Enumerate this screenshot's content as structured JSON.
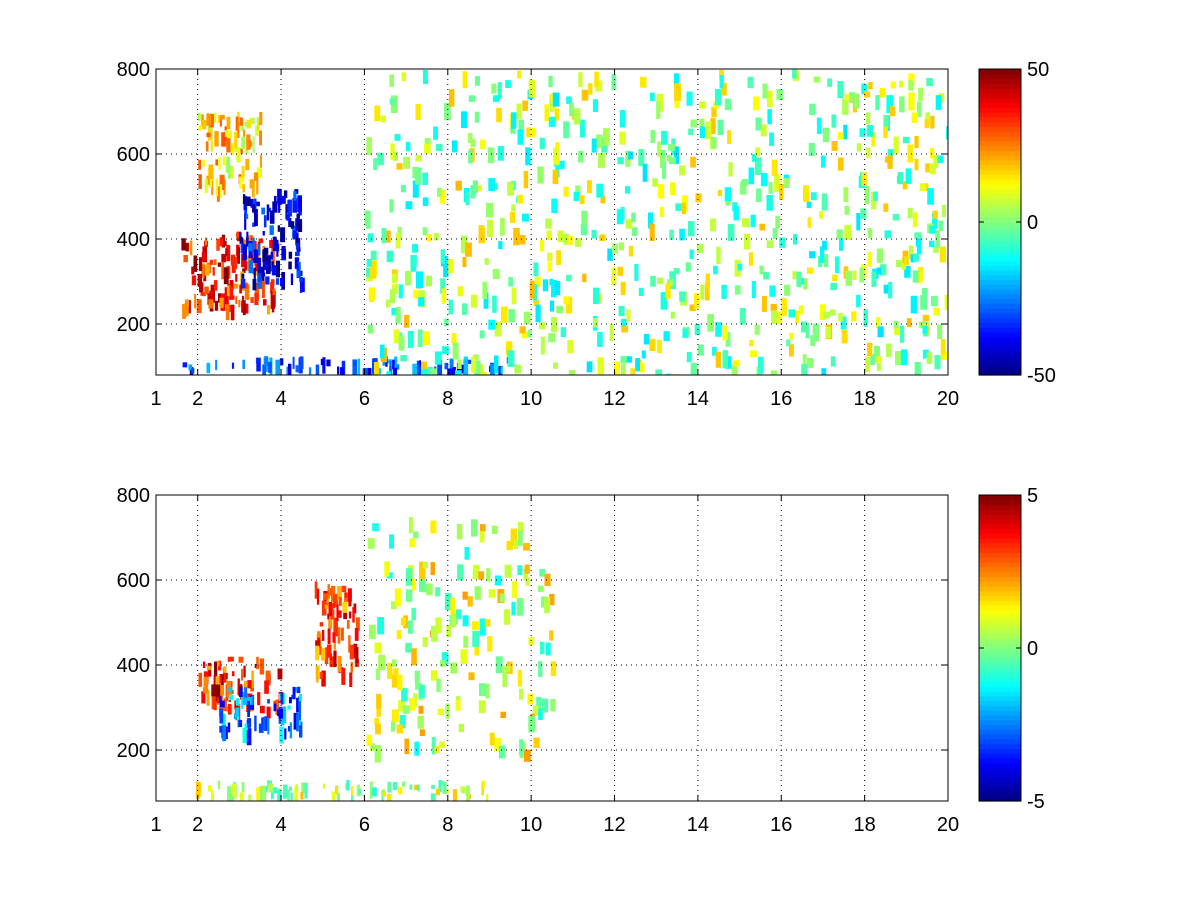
{
  "chart_data": [
    {
      "type": "heatmap",
      "title": "",
      "xlabel": "",
      "ylabel": "",
      "xlim": [
        1,
        20
      ],
      "ylim": [
        80,
        800
      ],
      "xticks": [
        1,
        2,
        4,
        6,
        8,
        10,
        12,
        14,
        16,
        18,
        20
      ],
      "yticks": [
        200,
        400,
        600,
        800
      ],
      "xtick_labels": [
        "1",
        "2",
        "4",
        "6",
        "8",
        "10",
        "12",
        "14",
        "16",
        "18",
        "20"
      ],
      "ytick_labels": [
        "200",
        "400",
        "600",
        "800"
      ],
      "grid": true,
      "colormap": "jet",
      "clim": [
        -50,
        50
      ],
      "colorbar_ticks": [
        -50,
        0,
        50
      ],
      "colorbar_labels": [
        "-50",
        "0",
        "50"
      ],
      "features": [
        {
          "desc": "positive ridge",
          "x_start": 1.6,
          "x_end": 3.8,
          "y_start": 240,
          "y_end": 420,
          "value": 35
        },
        {
          "desc": "negative ridge",
          "x_start": 3.0,
          "x_end": 4.5,
          "y_start": 300,
          "y_end": 520,
          "value": -40
        },
        {
          "desc": "upper positive band",
          "x_start": 2.0,
          "x_end": 3.5,
          "y_start": 520,
          "y_end": 700,
          "value": 15
        },
        {
          "desc": "low band",
          "x_start": 1.5,
          "x_end": 9.5,
          "y_start": 95,
          "y_end": 125,
          "value": -30
        },
        {
          "desc": "scattered patches",
          "x_start": 6.0,
          "x_end": 20.0,
          "y_start": 80,
          "y_end": 800,
          "value": 2
        }
      ]
    },
    {
      "type": "heatmap",
      "title": "",
      "xlabel": "",
      "ylabel": "",
      "xlim": [
        1,
        20
      ],
      "ylim": [
        80,
        800
      ],
      "xticks": [
        1,
        2,
        4,
        6,
        8,
        10,
        12,
        14,
        16,
        18,
        20
      ],
      "yticks": [
        200,
        400,
        600,
        800
      ],
      "xtick_labels": [
        "1",
        "2",
        "4",
        "6",
        "8",
        "10",
        "12",
        "14",
        "16",
        "18",
        "20"
      ],
      "ytick_labels": [
        "200",
        "400",
        "600",
        "800"
      ],
      "grid": true,
      "colormap": "jet",
      "clim": [
        -5,
        5
      ],
      "colorbar_ticks": [
        -5,
        0,
        5
      ],
      "colorbar_labels": [
        "-5",
        "0",
        "5"
      ],
      "features": [
        {
          "desc": "positive ridge",
          "x_start": 2.0,
          "x_end": 4.0,
          "y_start": 300,
          "y_end": 420,
          "value": 3.5
        },
        {
          "desc": "negative ridge",
          "x_start": 2.5,
          "x_end": 4.5,
          "y_start": 250,
          "y_end": 350,
          "value": -2.5
        },
        {
          "desc": "positive patch",
          "x_start": 4.8,
          "x_end": 5.8,
          "y_start": 380,
          "y_end": 600,
          "value": 3
        },
        {
          "desc": "low band",
          "x_start": 1.8,
          "x_end": 9.0,
          "y_start": 95,
          "y_end": 130,
          "value": 0.5
        },
        {
          "desc": "scattered patches",
          "x_start": 6.0,
          "x_end": 10.5,
          "y_start": 200,
          "y_end": 750,
          "value": 0.5
        }
      ]
    }
  ]
}
